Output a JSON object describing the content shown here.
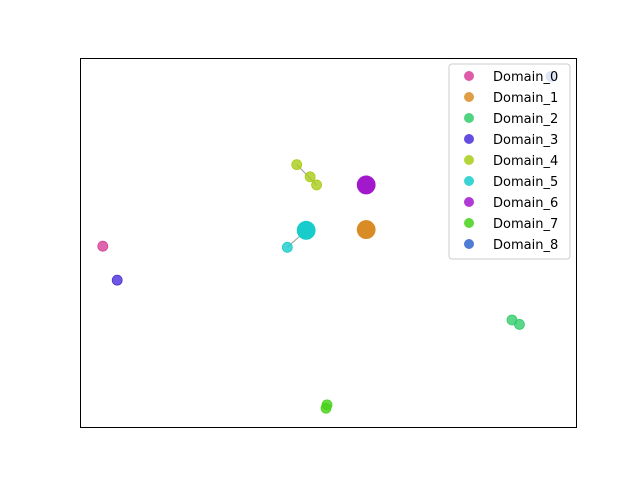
{
  "chart_data": {
    "type": "scatter",
    "title": "",
    "xlabel": "",
    "ylabel": "",
    "grid": false,
    "show_ticks": false,
    "legend_placement": "upper right",
    "xlim": [
      0,
      100
    ],
    "ylim": [
      0,
      100
    ],
    "series": [
      {
        "name": "Domain_0",
        "color": "#d6409a",
        "points": [
          [
            4.6,
            49.0
          ]
        ]
      },
      {
        "name": "Domain_1",
        "color": "#d98c26",
        "points": [
          [
            57.7,
            53.5
          ],
          [
            57.7,
            53.5
          ],
          [
            57.7,
            53.5
          ]
        ]
      },
      {
        "name": "Domain_2",
        "color": "#33cc6b",
        "points": [
          [
            87.1,
            29.0
          ],
          [
            88.6,
            27.8
          ]
        ]
      },
      {
        "name": "Domain_3",
        "color": "#4a2ed9",
        "points": [
          [
            7.5,
            39.8
          ]
        ]
      },
      {
        "name": "Domain_4",
        "color": "#a8cc17",
        "points": [
          [
            43.7,
            71.1
          ],
          [
            46.4,
            67.8
          ],
          [
            47.7,
            65.6
          ]
        ]
      },
      {
        "name": "Domain_5",
        "color": "#19cccc",
        "points": [
          [
            41.8,
            48.7
          ],
          [
            45.6,
            53.3
          ],
          [
            45.6,
            53.3
          ]
        ]
      },
      {
        "name": "Domain_6",
        "color": "#a219cc",
        "points": [
          [
            57.7,
            65.6
          ],
          [
            57.7,
            65.6
          ]
        ]
      },
      {
        "name": "Domain_7",
        "color": "#47d119",
        "points": [
          [
            49.6,
            5.1
          ],
          [
            49.8,
            6.0
          ]
        ]
      },
      {
        "name": "Domain_8",
        "color": "#3066cc",
        "points": [
          [
            95.0,
            95.0
          ]
        ]
      }
    ],
    "links": [
      {
        "from": [
          43.7,
          71.1
        ],
        "to": [
          47.7,
          65.6
        ]
      },
      {
        "from": [
          41.8,
          48.7
        ],
        "to": [
          45.6,
          53.3
        ]
      }
    ]
  }
}
